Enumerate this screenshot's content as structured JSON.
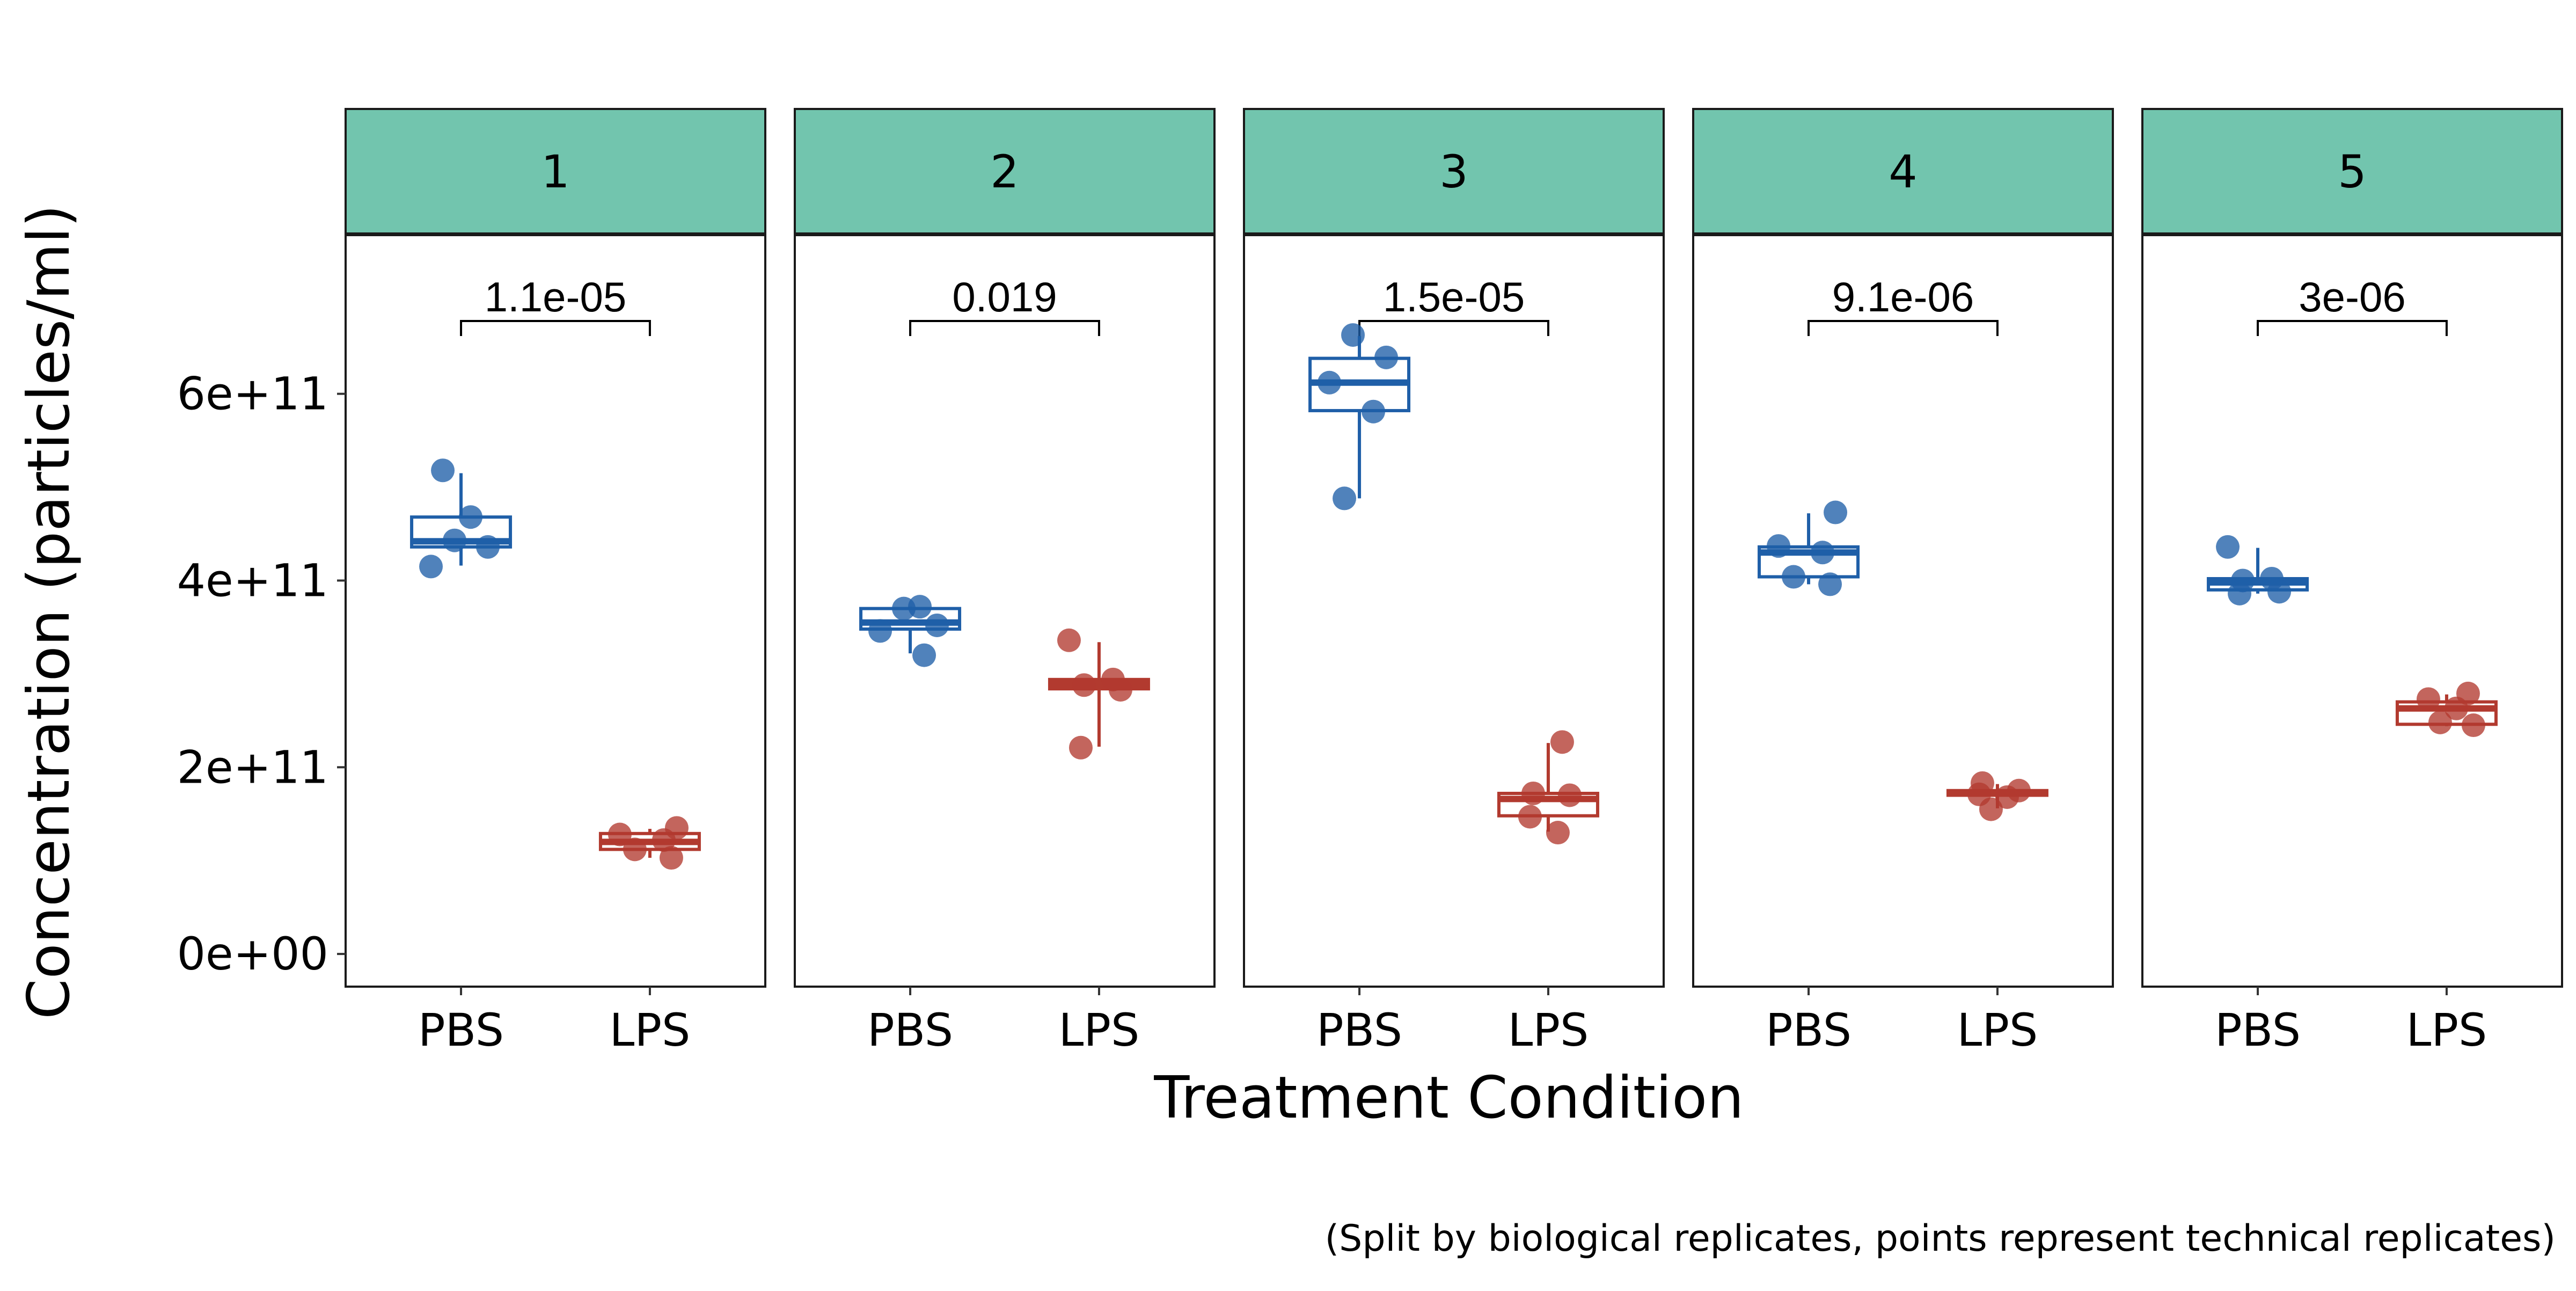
{
  "chart_data": {
    "type": "box",
    "xlabel": "Treatment Condition",
    "ylabel": "Concentration (particles/ml)",
    "caption": "(Split by biological replicates, points represent technical replicates)",
    "ylim": [
      -35000000000.0,
      770000000000.0
    ],
    "y_ticks": [
      0,
      200000000000,
      400000000000,
      600000000000
    ],
    "y_tick_labels": [
      "0e+00",
      "2e+11",
      "4e+11",
      "6e+11"
    ],
    "categories": [
      "PBS",
      "LPS"
    ],
    "colors": {
      "PBS": "#1f5fa8",
      "LPS": "#b23a2f",
      "strip": "#72c5ae",
      "grid": "#e5e5e5"
    },
    "grid": true,
    "facets": [
      {
        "label": "1",
        "p_value": "1.1e-05",
        "groups": [
          {
            "name": "PBS",
            "box": {
              "q1": 436000000000.0,
              "median": 442000000000.0,
              "q3": 468000000000.0,
              "whisker_low": 416000000000.0,
              "whisker_high": 515000000000.0
            },
            "points": [
              518000000000.0,
              468000000000.0,
              443000000000.0,
              436000000000.0,
              415000000000.0
            ]
          },
          {
            "name": "LPS",
            "box": {
              "q1": 112000000000.0,
              "median": 120000000000.0,
              "q3": 129000000000.0,
              "whisker_low": 103000000000.0,
              "whisker_high": 134000000000.0
            },
            "points": [
              135000000000.0,
              128000000000.0,
              122000000000.0,
              112000000000.0,
              103000000000.0
            ]
          }
        ]
      },
      {
        "label": "2",
        "p_value": "0.019",
        "groups": [
          {
            "name": "PBS",
            "box": {
              "q1": 348000000000.0,
              "median": 355000000000.0,
              "q3": 370000000000.0,
              "whisker_low": 322000000000.0,
              "whisker_high": 372000000000.0
            },
            "points": [
              372000000000.0,
              370000000000.0,
              352000000000.0,
              346000000000.0,
              320000000000.0
            ]
          },
          {
            "name": "LPS",
            "box": {
              "q1": 284000000000.0,
              "median": 289000000000.0,
              "q3": 294000000000.0,
              "whisker_low": 222000000000.0,
              "whisker_high": 334000000000.0
            },
            "points": [
              336000000000.0,
              294000000000.0,
              288000000000.0,
              283000000000.0,
              221000000000.0
            ]
          }
        ]
      },
      {
        "label": "3",
        "p_value": "1.5e-05",
        "groups": [
          {
            "name": "PBS",
            "box": {
              "q1": 582000000000.0,
              "median": 612000000000.0,
              "q3": 638000000000.0,
              "whisker_low": 488000000000.0,
              "whisker_high": 662000000000.0
            },
            "points": [
              663000000000.0,
              639000000000.0,
              612000000000.0,
              581000000000.0,
              488000000000.0
            ]
          },
          {
            "name": "LPS",
            "box": {
              "q1": 148000000000.0,
              "median": 166000000000.0,
              "q3": 172000000000.0,
              "whisker_low": 131000000000.0,
              "whisker_high": 226000000000.0
            },
            "points": [
              227000000000.0,
              172000000000.0,
              170000000000.0,
              147000000000.0,
              130000000000.0
            ]
          }
        ]
      },
      {
        "label": "4",
        "p_value": "9.1e-06",
        "groups": [
          {
            "name": "PBS",
            "box": {
              "q1": 404000000000.0,
              "median": 430000000000.0,
              "q3": 436000000000.0,
              "whisker_low": 396000000000.0,
              "whisker_high": 472000000000.0
            },
            "points": [
              473000000000.0,
              437000000000.0,
              430000000000.0,
              404000000000.0,
              396000000000.0
            ]
          },
          {
            "name": "LPS",
            "box": {
              "q1": 170000000000.0,
              "median": 172000000000.0,
              "q3": 175000000000.0,
              "whisker_low": 156000000000.0,
              "whisker_high": 182000000000.0
            },
            "points": [
              183000000000.0,
              175000000000.0,
              171000000000.0,
              168000000000.0,
              155000000000.0
            ]
          }
        ]
      },
      {
        "label": "5",
        "p_value": "3e-06",
        "groups": [
          {
            "name": "PBS",
            "box": {
              "q1": 390000000000.0,
              "median": 398000000000.0,
              "q3": 402000000000.0,
              "whisker_low": 386000000000.0,
              "whisker_high": 435000000000.0
            },
            "points": [
              436000000000.0,
              402000000000.0,
              400000000000.0,
              388000000000.0,
              386000000000.0
            ]
          },
          {
            "name": "LPS",
            "box": {
              "q1": 246000000000.0,
              "median": 263000000000.0,
              "q3": 270000000000.0,
              "whisker_low": 244000000000.0,
              "whisker_high": 278000000000.0
            },
            "points": [
              279000000000.0,
              273000000000.0,
              263000000000.0,
              248000000000.0,
              245000000000.0
            ]
          }
        ]
      }
    ]
  }
}
